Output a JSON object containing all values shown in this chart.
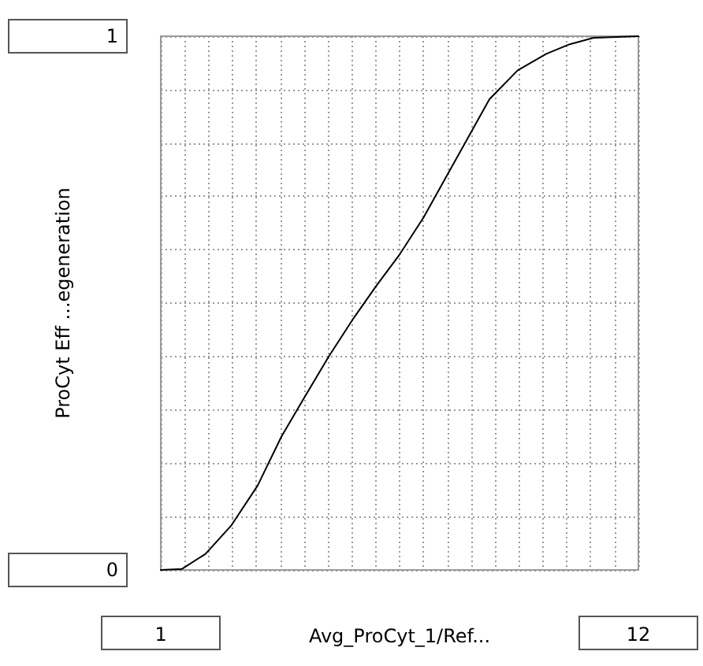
{
  "chart_data": {
    "type": "line",
    "xlabel": "Avg_ProCyt_1/Ref...",
    "ylabel": "ProCyt Eff ...egeneration",
    "x": [
      1,
      1.49,
      2.03,
      2.63,
      3.23,
      3.78,
      4.32,
      4.87,
      5.41,
      5.96,
      6.5,
      7.05,
      7.59,
      8.03,
      8.57,
      9.22,
      9.88,
      10.42,
      10.97,
      12
    ],
    "series": [
      {
        "color": "#000000",
        "values": [
          0,
          0.002,
          0.03,
          0.084,
          0.158,
          0.25,
          0.325,
          0.4,
          0.468,
          0.532,
          0.591,
          0.66,
          0.739,
          0.803,
          0.882,
          0.936,
          0.967,
          0.985,
          0.997,
          1
        ]
      }
    ],
    "xlim": [
      1,
      12
    ],
    "ylim": [
      0,
      1
    ],
    "xticks": [
      1,
      {
        "value": 1.55,
        "label": null
      },
      {
        "value": 2.1,
        "label": null
      },
      {
        "value": 2.65,
        "label": null
      },
      {
        "value": 3.2,
        "label": null
      },
      {
        "value": 3.75,
        "label": null
      },
      {
        "value": 4.3,
        "label": null
      },
      {
        "value": 4.85,
        "label": null
      },
      {
        "value": 5.4,
        "label": null
      },
      {
        "value": 5.95,
        "label": null
      },
      {
        "value": 6.5,
        "label": null
      },
      {
        "value": 7.05,
        "label": null
      },
      {
        "value": 7.6,
        "label": null
      },
      {
        "value": 8.15,
        "label": null
      },
      {
        "value": 8.7,
        "label": null
      },
      {
        "value": 9.25,
        "label": null
      },
      {
        "value": 9.8,
        "label": null
      },
      {
        "value": 10.35,
        "label": null
      },
      {
        "value": 10.9,
        "label": null
      },
      {
        "value": 11.45,
        "label": null
      },
      12
    ],
    "yticks": [
      0,
      {
        "value": 0.1,
        "label": null
      },
      {
        "value": 0.2,
        "label": null
      },
      {
        "value": 0.3,
        "label": null
      },
      {
        "value": 0.4,
        "label": null
      },
      {
        "value": 0.5,
        "label": null
      },
      {
        "value": 0.6,
        "label": null
      },
      {
        "value": 0.7,
        "label": null
      },
      {
        "value": 0.8,
        "label": null
      },
      {
        "value": 0.9,
        "label": null
      },
      1
    ],
    "grid": true,
    "marker": "none",
    "line_style": "solid"
  }
}
